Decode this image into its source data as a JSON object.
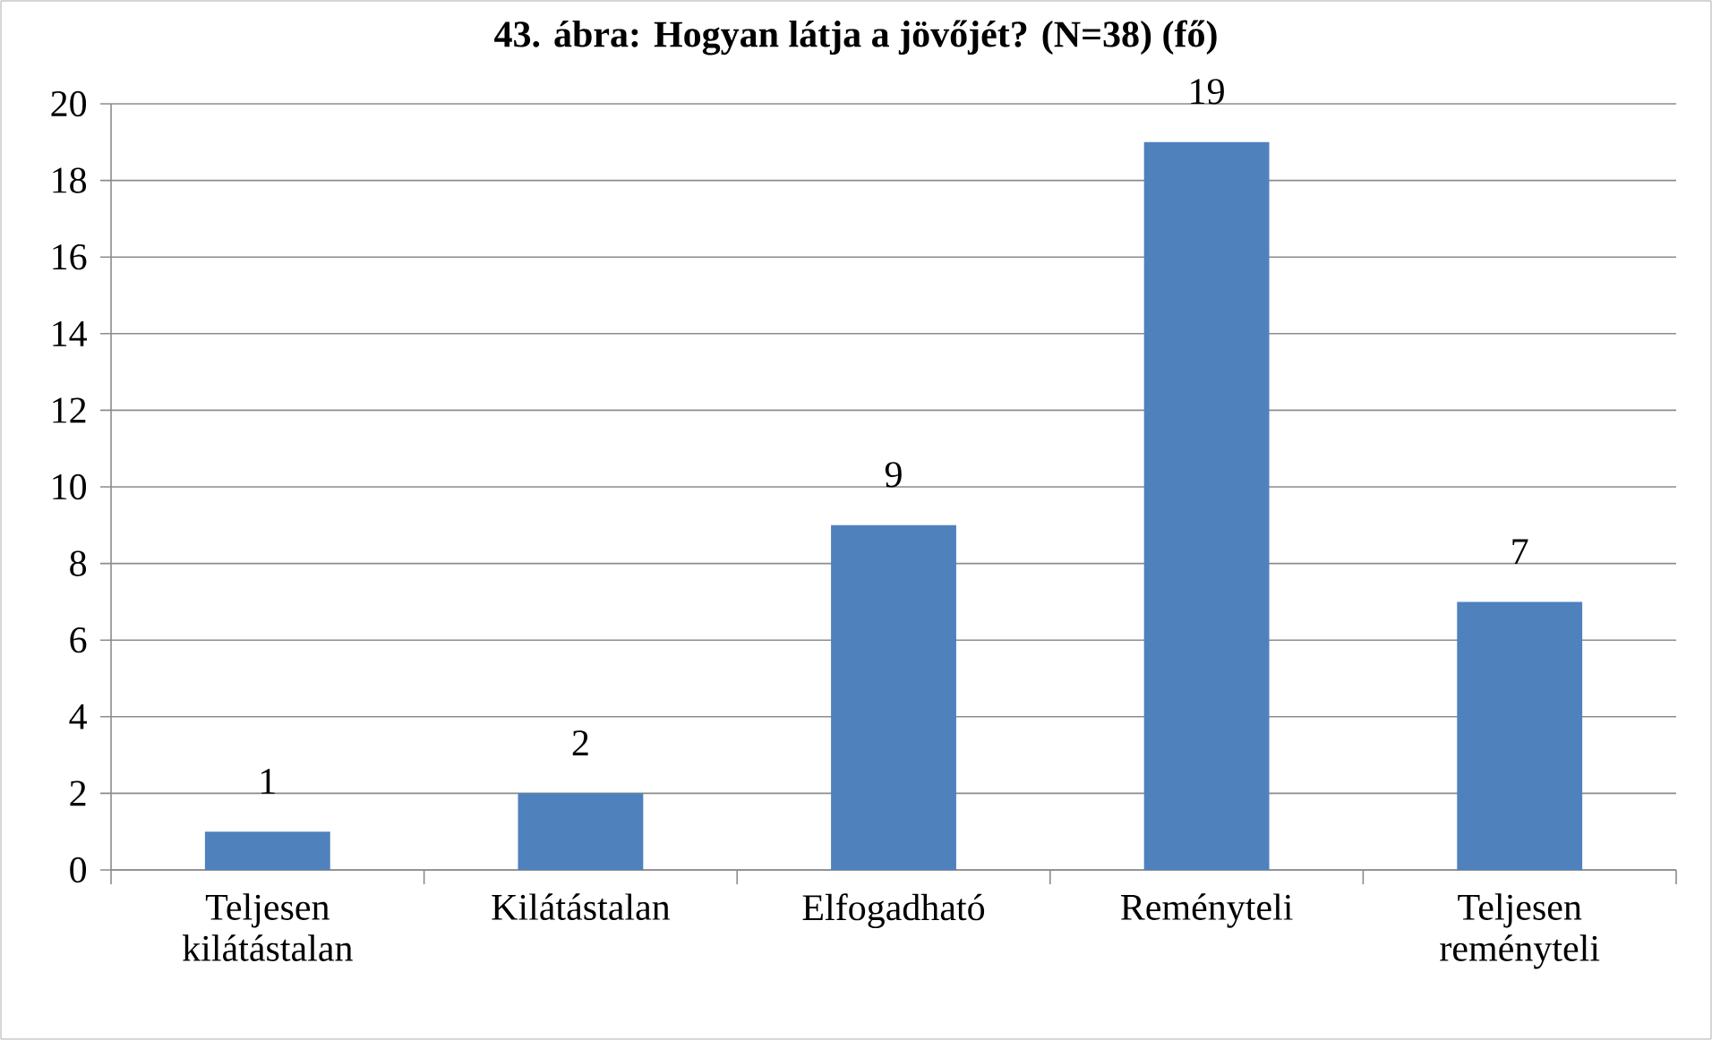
{
  "chart_data": {
    "type": "bar",
    "title": "43. ábra: Hogyan látja a jövőjét? (N=38) (fő)",
    "categories": [
      "Teljesen kilátástalan",
      "Kilátástalan",
      "Elfogadható",
      "Reményteli",
      "Teljesen reményteli"
    ],
    "values": [
      1,
      2,
      9,
      19,
      7
    ],
    "color": "#4f81bd",
    "ylim": [
      0,
      20
    ],
    "yticks": [
      0,
      2,
      4,
      6,
      8,
      10,
      12,
      14,
      16,
      18,
      20
    ],
    "grid": "y",
    "data_labels": true
  }
}
